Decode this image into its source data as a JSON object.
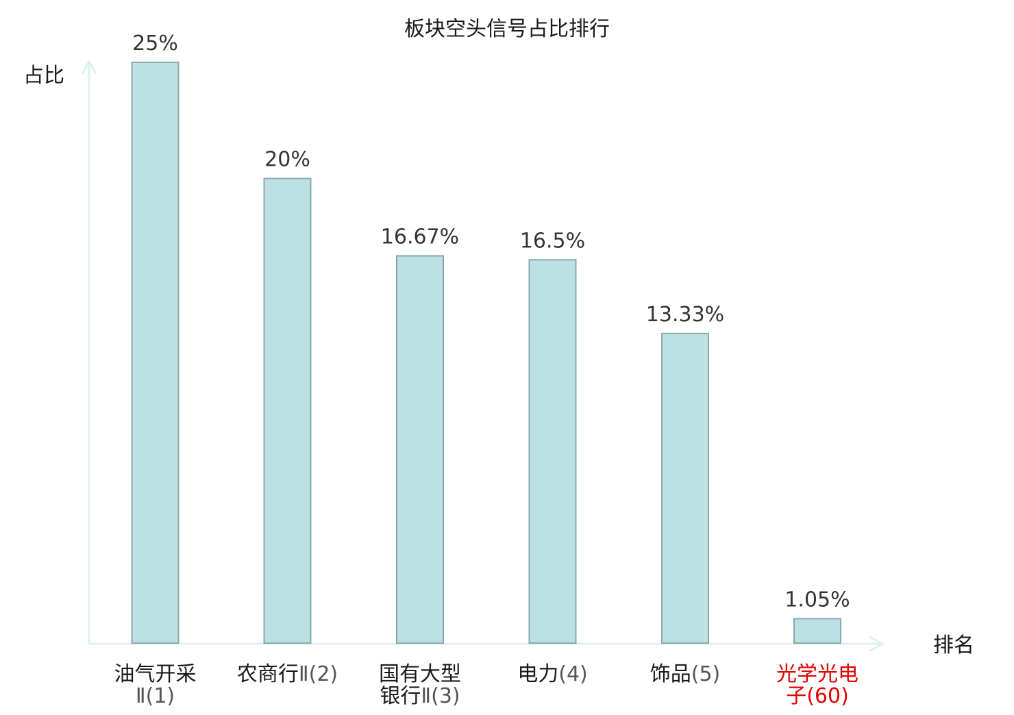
{
  "colors": {
    "bar_fill": "#bde0e3",
    "bar_stroke": "#8aa8ab",
    "axis": "#dcf0ee",
    "text": "#1a1a1a",
    "value_text": "#333333",
    "rank_text": "#555555",
    "highlight": "#e60000"
  },
  "chart_data": {
    "type": "bar",
    "title": "板块空头信号占比排行",
    "ylabel": "占比",
    "xlabel": "排名",
    "ylim": [
      0,
      25
    ],
    "grid": false,
    "categories": [
      {
        "name_lines": [
          "油气开采"
        ],
        "rank_line_prefix": "",
        "rank": "Ⅱ(1)",
        "highlight": false
      },
      {
        "name_lines": [],
        "rank_line_prefix": "农商行",
        "rank": "Ⅱ(2)",
        "highlight": false
      },
      {
        "name_lines": [
          "国有大型"
        ],
        "rank_line_prefix": "银行",
        "rank": "Ⅱ(3)",
        "highlight": false
      },
      {
        "name_lines": [],
        "rank_line_prefix": "电力",
        "rank": "(4)",
        "highlight": false
      },
      {
        "name_lines": [],
        "rank_line_prefix": "饰品",
        "rank": "(5)",
        "highlight": false
      },
      {
        "name_lines": [
          "光学光电"
        ],
        "rank_line_prefix": "子",
        "rank": "(60)",
        "highlight": true
      }
    ],
    "values": [
      25,
      20,
      16.67,
      16.5,
      13.33,
      1.05
    ],
    "value_labels": [
      "25%",
      "20%",
      "16.67%",
      "16.5%",
      "13.33%",
      "1.05%"
    ]
  }
}
